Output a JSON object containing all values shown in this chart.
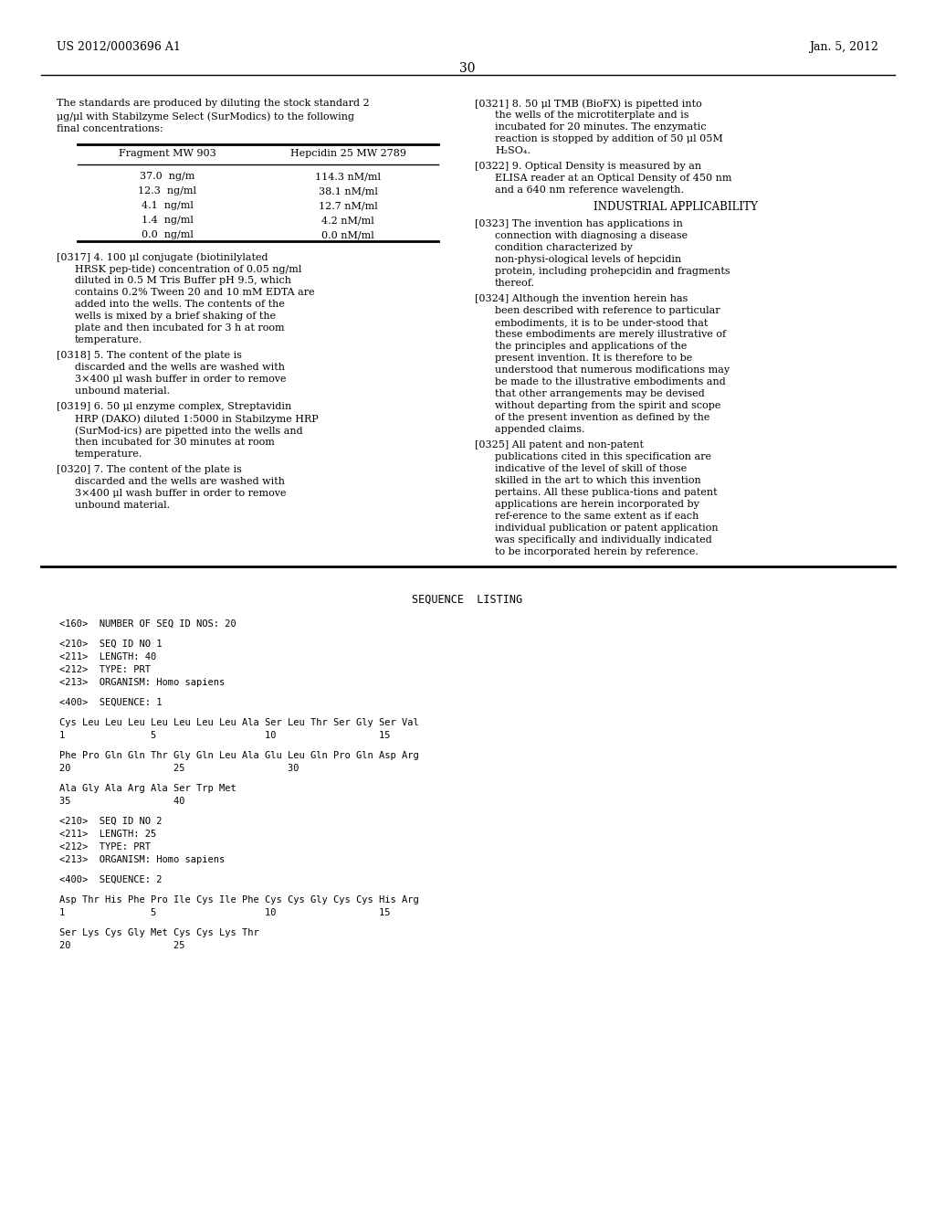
{
  "bg_color": "#ffffff",
  "header_left": "US 2012/0003696 A1",
  "header_right": "Jan. 5, 2012",
  "page_number": "30",
  "table_header_col1": "Fragment MW 903",
  "table_header_col2": "Hepcidin 25 MW 2789",
  "table_rows": [
    [
      "37.0  ng/m",
      "114.3 nM/ml"
    ],
    [
      "12.3  ng/ml",
      "38.1 nM/ml"
    ],
    [
      "4.1  ng/ml",
      "12.7 nM/ml"
    ],
    [
      "1.4  ng/ml",
      "4.2 nM/ml"
    ],
    [
      "0.0  ng/ml",
      "0.0 nM/ml"
    ]
  ],
  "font_size_body": 8.0,
  "font_size_header": 9.0,
  "font_size_pagenum": 10.0,
  "font_size_seq": 7.5,
  "serif": "DejaVu Serif",
  "mono": "DejaVu Sans Mono"
}
